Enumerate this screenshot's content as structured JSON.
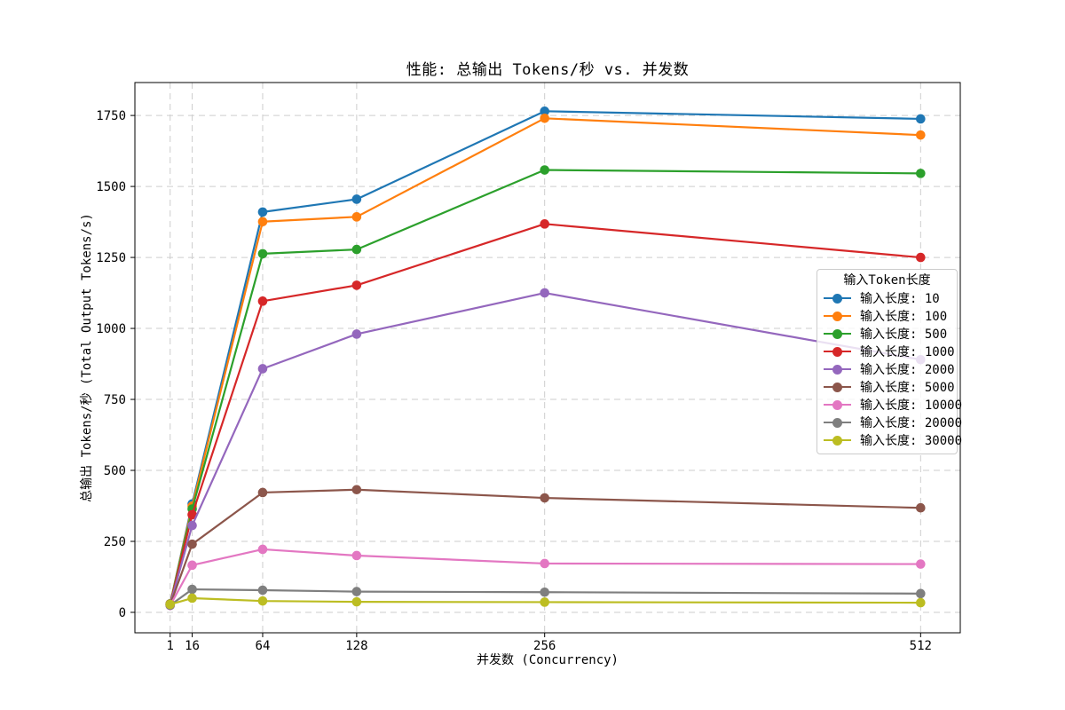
{
  "chart_data": {
    "type": "line",
    "title": "性能: 总输出 Tokens/秒 vs. 并发数",
    "xlabel": "并发数 (Concurrency)",
    "ylabel": "总输出 Tokens/秒 (Total Output Tokens/s)",
    "x": [
      1,
      16,
      64,
      128,
      256,
      512
    ],
    "xticks": [
      1,
      16,
      64,
      128,
      256,
      512
    ],
    "yticks": [
      0,
      250,
      500,
      750,
      1000,
      1250,
      1500,
      1750
    ],
    "xlim": [
      -23,
      539
    ],
    "ylim": [
      -72,
      1866
    ],
    "grid": true,
    "grid_style": "dashed",
    "legend": {
      "title": "输入Token长度",
      "position": "center-right"
    },
    "series": [
      {
        "name": "输入长度: 10",
        "color": "#1f77b4",
        "values": [
          30,
          382,
          1410,
          1455,
          1765,
          1738
        ]
      },
      {
        "name": "输入长度: 100",
        "color": "#ff7f0e",
        "values": [
          30,
          374,
          1376,
          1393,
          1740,
          1681
        ]
      },
      {
        "name": "输入长度: 500",
        "color": "#2ca02c",
        "values": [
          29,
          364,
          1263,
          1278,
          1558,
          1546
        ]
      },
      {
        "name": "输入长度: 1000",
        "color": "#d62728",
        "values": [
          28,
          344,
          1096,
          1152,
          1368,
          1250
        ]
      },
      {
        "name": "输入长度: 2000",
        "color": "#9467bd",
        "values": [
          27,
          306,
          858,
          980,
          1125,
          890
        ]
      },
      {
        "name": "输入长度: 5000",
        "color": "#8c564b",
        "values": [
          26,
          240,
          422,
          432,
          403,
          368
        ]
      },
      {
        "name": "输入长度: 10000",
        "color": "#e377c2",
        "values": [
          24,
          166,
          222,
          200,
          172,
          170
        ]
      },
      {
        "name": "输入长度: 20000",
        "color": "#7f7f7f",
        "values": [
          25,
          81,
          78,
          73,
          71,
          66
        ]
      },
      {
        "name": "输入长度: 30000",
        "color": "#bcbd22",
        "values": [
          28,
          50,
          40,
          37,
          36,
          34
        ]
      }
    ],
    "colors": {
      "background": "#ffffff",
      "grid": "#cdcdcd",
      "spine": "#000000",
      "text": "#000000"
    }
  }
}
